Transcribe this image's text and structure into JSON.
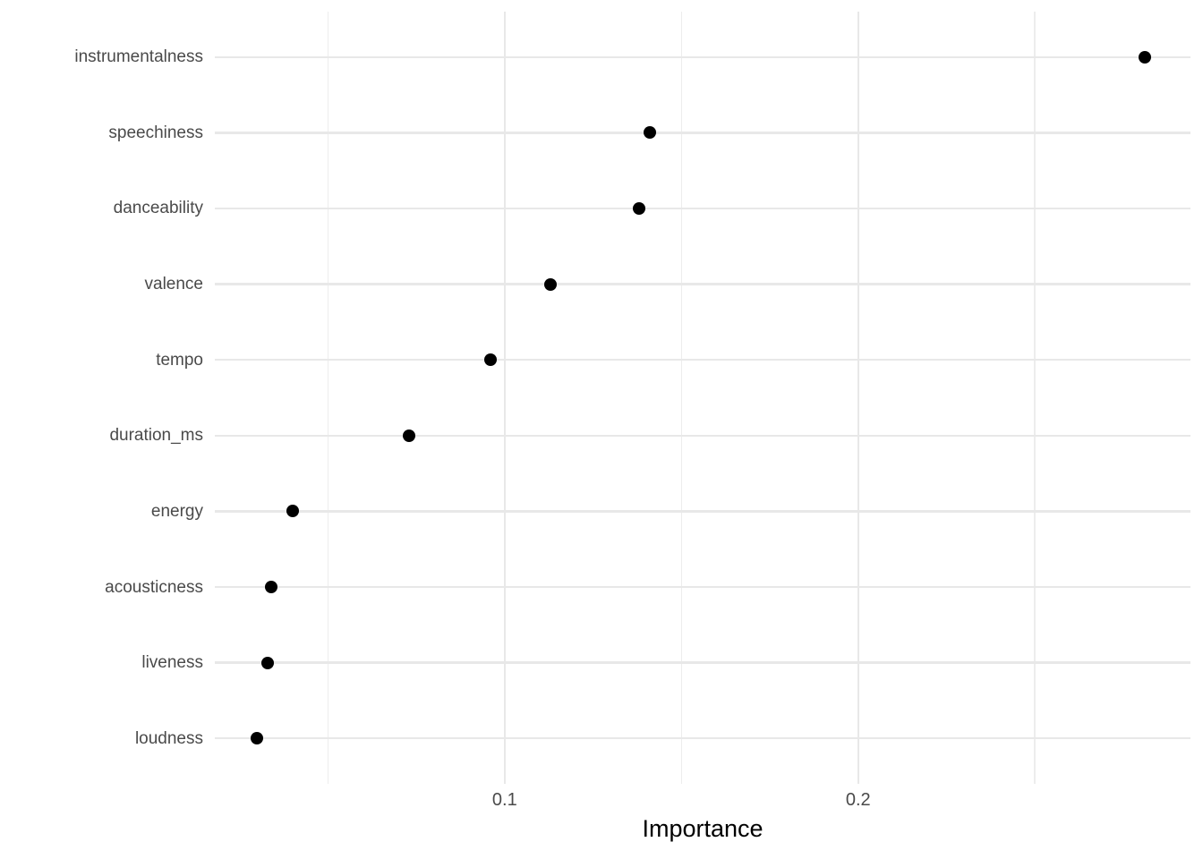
{
  "chart_data": {
    "type": "scatter",
    "subtype": "cleveland-dot-plot",
    "orientation": "horizontal",
    "title": "",
    "xlabel": "Importance",
    "ylabel": "",
    "categories": [
      "instrumentalness",
      "speechiness",
      "danceability",
      "valence",
      "tempo",
      "duration_ms",
      "energy",
      "acousticness",
      "liveness",
      "loudness"
    ],
    "values": [
      0.281,
      0.141,
      0.138,
      0.113,
      0.096,
      0.073,
      0.04,
      0.034,
      0.033,
      0.03
    ],
    "xlim": [
      0.018,
      0.294
    ],
    "x_major_ticks": [
      0.1,
      0.2
    ],
    "x_major_tick_labels": [
      "0.1",
      "0.2"
    ],
    "x_minor_ticks": [
      0.05,
      0.15,
      0.25
    ],
    "grid": true,
    "legend": false,
    "colors": {
      "point": "#000000",
      "grid_major": "#e8e8e8",
      "grid_minor": "#ededed",
      "axis_text": "#4a4a4a",
      "axis_title": "#000000",
      "background": "#ffffff"
    }
  }
}
